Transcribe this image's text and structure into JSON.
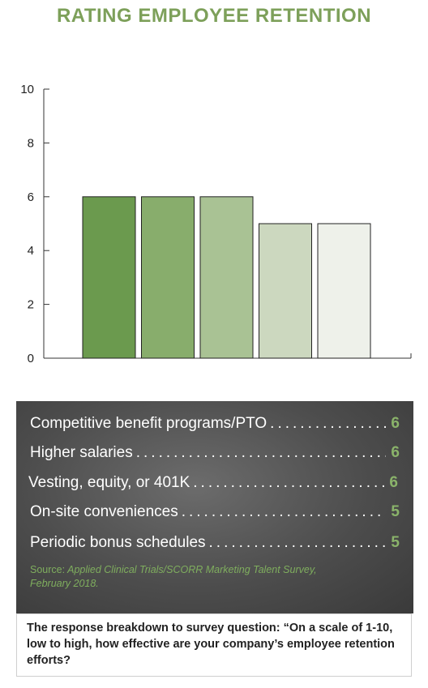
{
  "chart_data": {
    "type": "bar",
    "title": "RATING EMPLOYEE RETENTION",
    "categories": [
      "Competitive benefit programs/PTO",
      "Higher salaries",
      "Vesting, equity, or 401K",
      "On-site conveniences",
      "Periodic bonus schedules"
    ],
    "values": [
      6,
      6,
      6,
      5,
      5
    ],
    "value_labels": [
      "6",
      "6",
      "6",
      "5",
      "5"
    ],
    "ylim": [
      0,
      10
    ],
    "yticks": [
      "0",
      "2",
      "4",
      "6",
      "8",
      "10"
    ],
    "xlabel": "",
    "ylabel": "",
    "grid": false,
    "legend": "below",
    "colors": [
      "#6b9a4e",
      "#88ad6c",
      "#a9c294",
      "#ccd8bf",
      "#eef1ea"
    ]
  },
  "source": {
    "prefix": "Source:",
    "text": "Applied Clinical Trials/SCORR Marketing Talent Survey, February 2018."
  },
  "caption": "The response breakdown to survey question: “On a scale of 1-10, low to high, how effective are your company’s employee retention efforts?"
}
